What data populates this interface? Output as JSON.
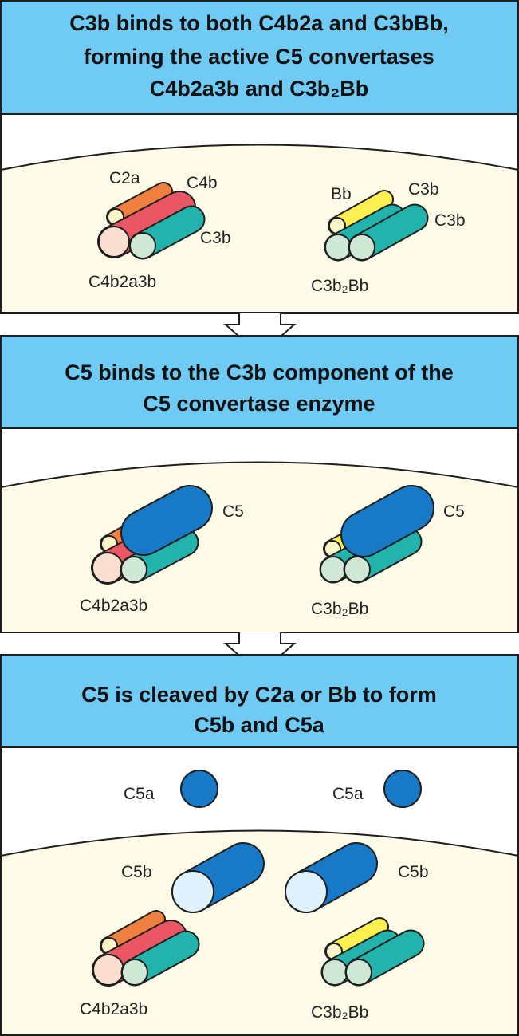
{
  "colors": {
    "header_fill": "#6fcbf3",
    "membrane_fill": "#fdfbe8",
    "outline": "#1e1e1e",
    "c2a": "#f0803f",
    "c4b": "#ea5663",
    "c3b": "#22b3ad",
    "bb": "#fbf04f",
    "c5": "#1879c6",
    "c5_end": "#def1fc",
    "small_end_pink": "#fbe0d2",
    "small_end_cream": "#fbf6c9",
    "c3b_end": "#cfe8d6"
  },
  "panels": [
    {
      "title_lines": [
        "C3b binds to both C4b2a and C3bBb,",
        "forming the active C5 convertases",
        "C4b2a3b and C3b₂Bb"
      ],
      "labels": {
        "c2a": "C2a",
        "c4b": "C4b",
        "c3b_left": "C3b",
        "left_complex": "C4b2a3b",
        "bb": "Bb",
        "c3b_right_1": "C3b",
        "c3b_right_2": "C3b",
        "right_complex": "C3b₂Bb"
      }
    },
    {
      "title_lines": [
        "C5 binds to the C3b component of the",
        "C5 convertase enzyme"
      ],
      "labels": {
        "c5_left": "C5",
        "c5_right": "C5",
        "left_complex": "C4b2a3b",
        "right_complex": "C3b₂Bb"
      }
    },
    {
      "title_lines": [
        "C5 is cleaved by C2a or Bb to form",
        "C5b and C5a"
      ],
      "labels": {
        "c5a_left": "C5a",
        "c5a_right": "C5a",
        "c5b_left": "C5b",
        "c5b_right": "C5b",
        "left_complex": "C4b2a3b",
        "right_complex": "C3b₂Bb"
      }
    }
  ],
  "icons": {
    "transition_arrow": "down-arrow-icon"
  }
}
